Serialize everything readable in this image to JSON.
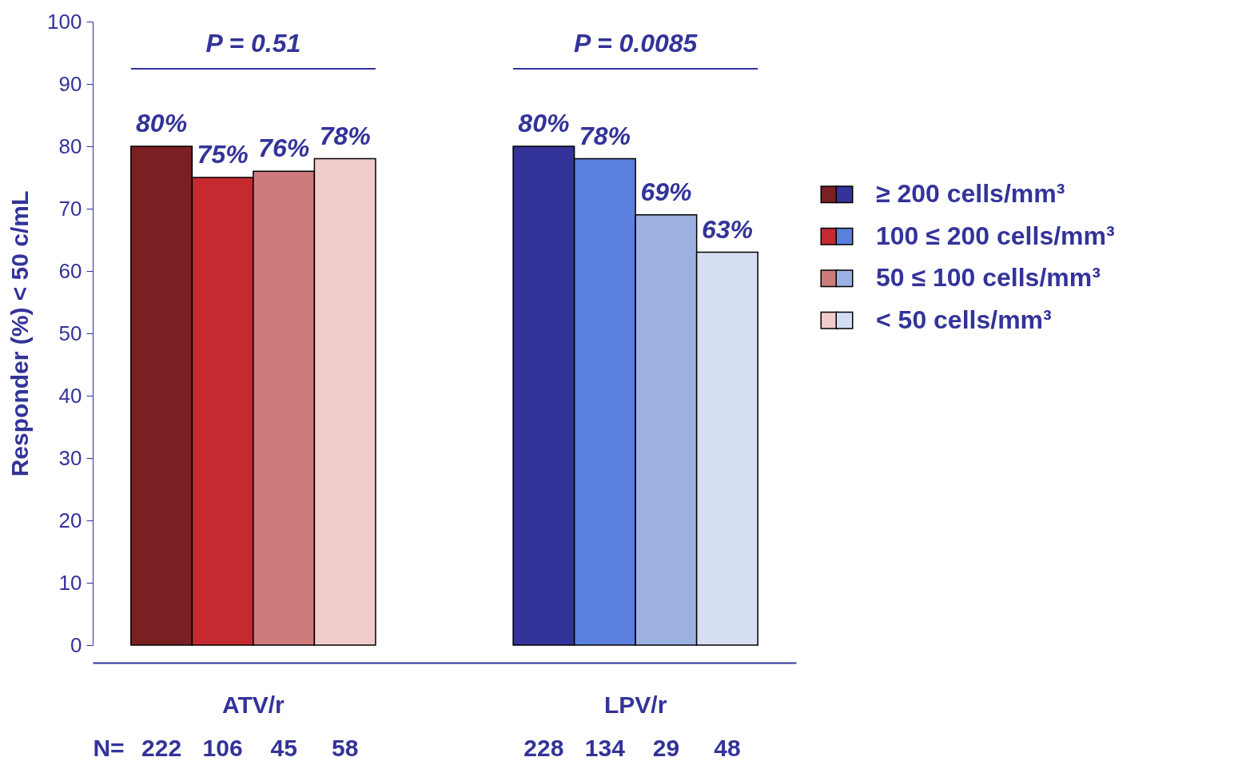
{
  "chart_data": {
    "type": "bar",
    "ylabel": "Responder (%) < 50 c/mL",
    "categories": [
      "ATV/r",
      "LPV/r"
    ],
    "series": [
      {
        "name": "≥ 200  cells/mm³",
        "colors": [
          "#7a1f22",
          "#333399"
        ],
        "values": [
          80,
          80
        ],
        "value_labels": [
          "80%",
          "80%"
        ]
      },
      {
        "name": "100 ≤ 200  cells/mm³",
        "colors": [
          "#c42a30",
          "#5a7fdc"
        ],
        "values": [
          75,
          78
        ],
        "value_labels": [
          "75%",
          "78%"
        ]
      },
      {
        "name": "50 ≤ 100  cells/mm³",
        "colors": [
          "#cd7b7c",
          "#9cb1e2"
        ],
        "values": [
          76,
          69
        ],
        "value_labels": [
          "76%",
          "69%"
        ]
      },
      {
        "name": "< 50  cells/mm³",
        "colors": [
          "#f2cccc",
          "#d6def4"
        ],
        "values": [
          78,
          63
        ],
        "value_labels": [
          "78%",
          "63%"
        ]
      }
    ],
    "ylim": [
      0,
      100
    ],
    "yticks": [
      0,
      10,
      20,
      30,
      40,
      50,
      60,
      70,
      80,
      90,
      100
    ],
    "legend": "right",
    "annotations": [
      "P = 0.51",
      "P = 0.0085",
      "N=",
      "222",
      "106",
      "45",
      "58",
      "228",
      "134",
      "29",
      "48"
    ]
  }
}
